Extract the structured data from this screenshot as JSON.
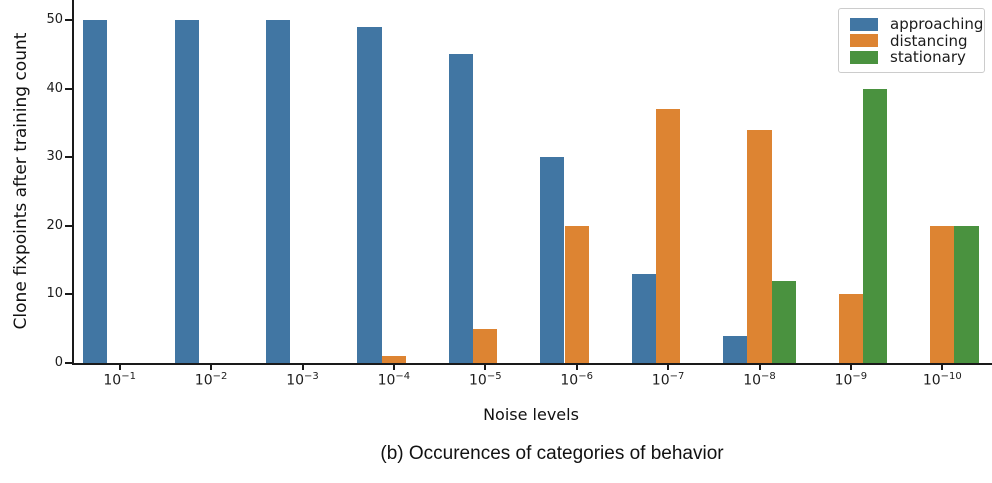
{
  "figure": {
    "caption": "(b) Occurences of categories of behavior"
  },
  "chart_data": {
    "type": "bar",
    "title": "",
    "xlabel": "Noise levels",
    "ylabel": "Clone fixpoints after training count",
    "categories": [
      "10^−1",
      "10^−2",
      "10^−3",
      "10^−4",
      "10^−5",
      "10^−6",
      "10^−7",
      "10^−8",
      "10^−9",
      "10^−10"
    ],
    "series": [
      {
        "name": "approaching",
        "color": "#4176a3",
        "values": [
          50,
          50,
          50,
          49,
          45,
          30,
          13,
          4,
          0,
          0
        ]
      },
      {
        "name": "distancing",
        "color": "#dd8432",
        "values": [
          0,
          0,
          0,
          1,
          5,
          20,
          37,
          34,
          10,
          20
        ]
      },
      {
        "name": "stationary",
        "color": "#4a923f",
        "values": [
          0,
          0,
          0,
          0,
          0,
          0,
          0,
          12,
          40,
          20
        ]
      }
    ],
    "ylim": [
      0,
      52.5
    ],
    "yticks": [
      0,
      10,
      20,
      30,
      40,
      50
    ],
    "legend_position": "upper right",
    "grid": false,
    "axis_color": "#1a1a1a"
  }
}
